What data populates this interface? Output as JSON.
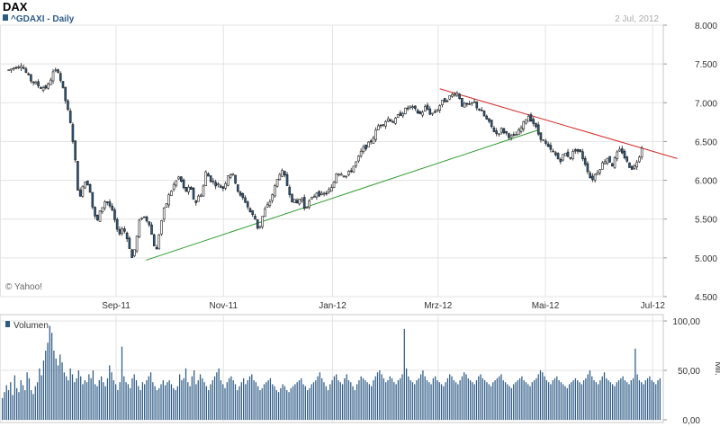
{
  "header": {
    "title": "DAX",
    "series_label": "^GDAXI - Daily",
    "date": "2 Jul, 2012",
    "copyright": "© Yahoo!"
  },
  "colors": {
    "up_fill": "#ffffff",
    "down_fill": "#2e5b86",
    "candle_outline": "#1a1a1a",
    "volume": "#2e5b86",
    "support_line": "#2e9a2e",
    "resistance_line": "#d12a2a",
    "grid": "#e3e3e3",
    "text": "#333333",
    "muted": "#999999"
  },
  "chart_data": [
    {
      "type": "candlestick",
      "title": "DAX",
      "series": [
        {
          "name": "^GDAXI - Daily"
        }
      ],
      "ylim": [
        4500,
        8000
      ],
      "y_ticks": [
        4500,
        5000,
        5500,
        6000,
        6500,
        7000,
        7500,
        8000
      ],
      "y_tick_labels": [
        "4.500",
        "5.000",
        "5.500",
        "6.000",
        "6.500",
        "7.000",
        "7.500",
        "8.000"
      ],
      "x_tick_labels": [
        "Sep-11",
        "Nov-11",
        "Jan-12",
        "Mrz-12",
        "Mai-12",
        "Jul-12"
      ],
      "x_tick_days": [
        61,
        122,
        184,
        244,
        305,
        366
      ],
      "grid": true,
      "close_path": [
        [
          0,
          7420
        ],
        [
          7,
          7500
        ],
        [
          12,
          7300
        ],
        [
          18,
          7200
        ],
        [
          22,
          7200
        ],
        [
          25,
          7380
        ],
        [
          28,
          7420
        ],
        [
          31,
          7150
        ],
        [
          34,
          6850
        ],
        [
          36,
          6600
        ],
        [
          38,
          6200
        ],
        [
          40,
          5700
        ],
        [
          42,
          5950
        ],
        [
          44,
          6000
        ],
        [
          46,
          5900
        ],
        [
          48,
          5600
        ],
        [
          50,
          5450
        ],
        [
          52,
          5600
        ],
        [
          55,
          5750
        ],
        [
          58,
          5650
        ],
        [
          60,
          5500
        ],
        [
          62,
          5300
        ],
        [
          65,
          5400
        ],
        [
          68,
          5200
        ],
        [
          70,
          5000
        ],
        [
          72,
          5150
        ],
        [
          74,
          5450
        ],
        [
          76,
          5550
        ],
        [
          78,
          5500
        ],
        [
          80,
          5450
        ],
        [
          82,
          5200
        ],
        [
          84,
          5100
        ],
        [
          86,
          5400
        ],
        [
          88,
          5600
        ],
        [
          91,
          5800
        ],
        [
          94,
          5950
        ],
        [
          97,
          6050
        ],
        [
          100,
          5850
        ],
        [
          103,
          5900
        ],
        [
          106,
          5700
        ],
        [
          108,
          5800
        ],
        [
          110,
          5850
        ],
        [
          112,
          6100
        ],
        [
          115,
          6000
        ],
        [
          118,
          5950
        ],
        [
          122,
          5900
        ],
        [
          125,
          6100
        ],
        [
          128,
          6050
        ],
        [
          131,
          5800
        ],
        [
          134,
          5750
        ],
        [
          137,
          5600
        ],
        [
          140,
          5500
        ],
        [
          142,
          5350
        ],
        [
          145,
          5600
        ],
        [
          148,
          5700
        ],
        [
          151,
          5900
        ],
        [
          154,
          6100
        ],
        [
          156,
          6100
        ],
        [
          158,
          5950
        ],
        [
          161,
          5750
        ],
        [
          164,
          5700
        ],
        [
          166,
          5800
        ],
        [
          168,
          5650
        ],
        [
          170,
          5700
        ],
        [
          172,
          5750
        ],
        [
          175,
          5850
        ],
        [
          178,
          5800
        ],
        [
          181,
          5850
        ],
        [
          184,
          5900
        ],
        [
          186,
          6100
        ],
        [
          189,
          6100
        ],
        [
          192,
          6050
        ],
        [
          195,
          6150
        ],
        [
          198,
          6250
        ],
        [
          201,
          6400
        ],
        [
          204,
          6450
        ],
        [
          207,
          6550
        ],
        [
          210,
          6700
        ],
        [
          213,
          6750
        ],
        [
          216,
          6800
        ],
        [
          219,
          6750
        ],
        [
          222,
          6850
        ],
        [
          225,
          6900
        ],
        [
          228,
          6950
        ],
        [
          231,
          6900
        ],
        [
          234,
          6850
        ],
        [
          237,
          6950
        ],
        [
          240,
          6850
        ],
        [
          243,
          6900
        ],
        [
          246,
          7000
        ],
        [
          249,
          7050
        ],
        [
          252,
          7100
        ],
        [
          254,
          7150
        ],
        [
          256,
          7080
        ],
        [
          258,
          6950
        ],
        [
          260,
          6980
        ],
        [
          262,
          6950
        ],
        [
          264,
          7020
        ],
        [
          266,
          6950
        ],
        [
          268,
          6900
        ],
        [
          271,
          6800
        ],
        [
          274,
          6700
        ],
        [
          277,
          6600
        ],
        [
          280,
          6650
        ],
        [
          283,
          6600
        ],
        [
          286,
          6550
        ],
        [
          289,
          6600
        ],
        [
          292,
          6700
        ],
        [
          295,
          6850
        ],
        [
          298,
          6750
        ],
        [
          301,
          6600
        ],
        [
          304,
          6500
        ],
        [
          307,
          6400
        ],
        [
          310,
          6350
        ],
        [
          313,
          6250
        ],
        [
          316,
          6350
        ],
        [
          319,
          6300
        ],
        [
          322,
          6400
        ],
        [
          325,
          6350
        ],
        [
          328,
          6200
        ],
        [
          331,
          6000
        ],
        [
          334,
          6100
        ],
        [
          337,
          6200
        ],
        [
          340,
          6300
        ],
        [
          343,
          6200
        ],
        [
          346,
          6350
        ],
        [
          348,
          6400
        ],
        [
          350,
          6300
        ],
        [
          352,
          6200
        ],
        [
          355,
          6150
        ],
        [
          358,
          6300
        ],
        [
          360,
          6450
        ]
      ],
      "trendlines": [
        {
          "name": "support",
          "color": "#2e9a2e",
          "from": [
            78,
            4970
          ],
          "to": [
            301,
            6650
          ]
        },
        {
          "name": "resistance",
          "color": "#d12a2a",
          "from": [
            245,
            7180
          ],
          "to": [
            380,
            6280
          ]
        }
      ]
    },
    {
      "type": "bar",
      "title": "Volumen",
      "unit": "Mil.",
      "ylim": [
        0,
        100
      ],
      "y_ticks": [
        0,
        50,
        100
      ],
      "y_tick_labels": [
        "0,00",
        "50,00",
        "100,00"
      ],
      "values": [
        22,
        28,
        35,
        30,
        38,
        25,
        45,
        32,
        28,
        40,
        35,
        30,
        48,
        42,
        30,
        26,
        34,
        38,
        52,
        45,
        60,
        70,
        78,
        95,
        88,
        70,
        62,
        55,
        66,
        58,
        48,
        44,
        40,
        52,
        46,
        38,
        42,
        50,
        44,
        36,
        40,
        38,
        46,
        42,
        50,
        36,
        34,
        40,
        44,
        38,
        34,
        42,
        55,
        48,
        40,
        36,
        30,
        38,
        74,
        44,
        38,
        36,
        32,
        42,
        46,
        40,
        34,
        30,
        38,
        36,
        40,
        44,
        48,
        38,
        34,
        30,
        32,
        36,
        40,
        35,
        38,
        40,
        36,
        32,
        30,
        34,
        46,
        40,
        42,
        52,
        38,
        34,
        44,
        50,
        36,
        40,
        46,
        42,
        38,
        34,
        30,
        36,
        40,
        44,
        48,
        52,
        40,
        36,
        32,
        38,
        42,
        44,
        40,
        36,
        30,
        34,
        38,
        42,
        36,
        40,
        44,
        46,
        40,
        38,
        34,
        30,
        32,
        36,
        38,
        40,
        42,
        36,
        34,
        30,
        28,
        32,
        36,
        34,
        30,
        28,
        32,
        34,
        36,
        38,
        40,
        42,
        36,
        34,
        30,
        32,
        36,
        38,
        40,
        44,
        48,
        42,
        38,
        34,
        30,
        36,
        40,
        44,
        46,
        40,
        38,
        36,
        42,
        46,
        40,
        38,
        34,
        30,
        36,
        40,
        44,
        42,
        40,
        38,
        36,
        34,
        40,
        44,
        48,
        50,
        46,
        42,
        38,
        40,
        44,
        42,
        38,
        36,
        40,
        42,
        46,
        92,
        52,
        44,
        40,
        38,
        36,
        40,
        42,
        46,
        50,
        44,
        40,
        38,
        36,
        42,
        44,
        40,
        38,
        36,
        34,
        38,
        42,
        46,
        44,
        40,
        38,
        36,
        40,
        44,
        48,
        46,
        42,
        40,
        38,
        36,
        40,
        44,
        46,
        42,
        40,
        38,
        36,
        34,
        38,
        40,
        42,
        44,
        46,
        40,
        38,
        36,
        34,
        32,
        36,
        38,
        40,
        42,
        44,
        40,
        38,
        36,
        34,
        38,
        40,
        42,
        46,
        50,
        48,
        44,
        40,
        38,
        36,
        40,
        42,
        44,
        40,
        38,
        36,
        34,
        32,
        36,
        38,
        40,
        42,
        40,
        38,
        36,
        40,
        42,
        46,
        50,
        44,
        40,
        38,
        36,
        40,
        44,
        48,
        42,
        40,
        38,
        36,
        34,
        38,
        40,
        42,
        44,
        40,
        38,
        36,
        40,
        42,
        72,
        46,
        40,
        38,
        36,
        40,
        42,
        44,
        40,
        38,
        36,
        40,
        42
      ]
    }
  ]
}
